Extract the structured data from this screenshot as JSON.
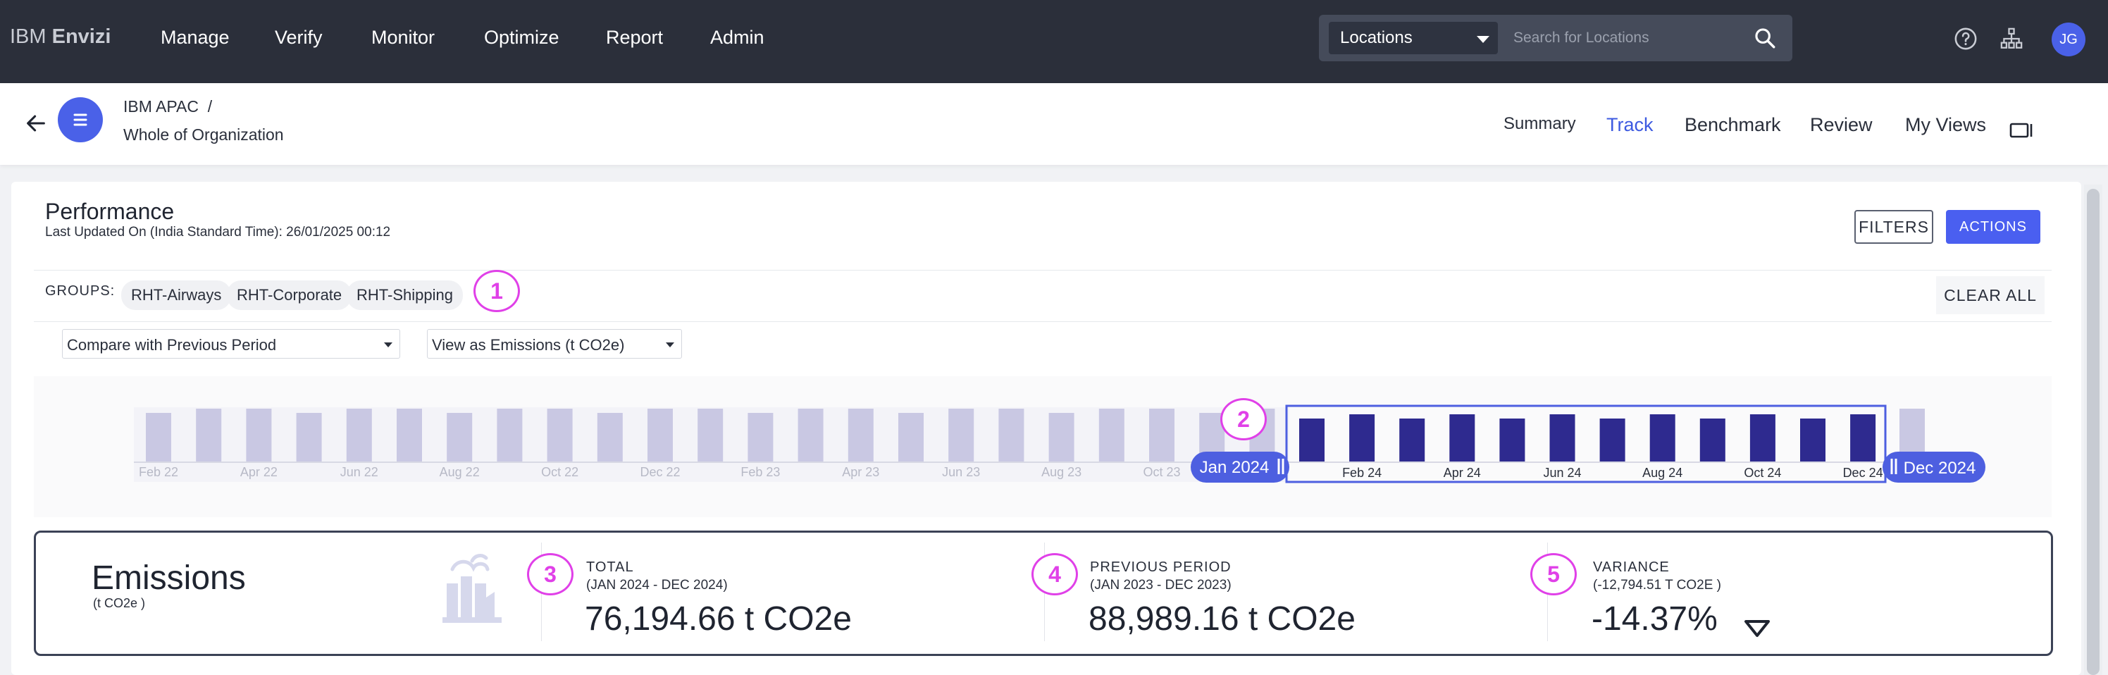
{
  "app": {
    "brand_prefix": "IBM",
    "brand_name": "Envizi"
  },
  "topnav": {
    "items": [
      "Manage",
      "Verify",
      "Monitor",
      "Optimize",
      "Report",
      "Admin"
    ]
  },
  "search": {
    "scope": "Locations",
    "placeholder": "Search for Locations"
  },
  "user": {
    "initials": "JG"
  },
  "breadcrumb": {
    "parent": "IBM APAC",
    "separator": "/",
    "current": "Whole of Organization"
  },
  "tabs": [
    {
      "label": "Summary",
      "active": false
    },
    {
      "label": "Track",
      "active": true
    },
    {
      "label": "Benchmark",
      "active": false
    },
    {
      "label": "Review",
      "active": false
    },
    {
      "label": "My Views",
      "active": false
    }
  ],
  "performance": {
    "title": "Performance",
    "last_updated": "Last Updated On (India Standard Time): 26/01/2025 00:12",
    "filters_label": "FILTERS",
    "actions_label": "ACTIONS"
  },
  "groups": {
    "label": "GROUPS:",
    "chips": [
      "RHT-Airways",
      "RHT-Corporate",
      "RHT-Shipping"
    ],
    "clear_label": "CLEAR ALL"
  },
  "selectors": {
    "compare": "Compare with Previous Period",
    "view_as": "View as Emissions (t CO2e)"
  },
  "timeline": {
    "months": [
      "Feb 22",
      "Mar 22",
      "Apr 22",
      "May 22",
      "Jun 22",
      "Jul 22",
      "Aug 22",
      "Sep 22",
      "Oct 22",
      "Nov 22",
      "Dec 22",
      "Jan 23",
      "Feb 23",
      "Mar 23",
      "Apr 23",
      "May 23",
      "Jun 23",
      "Jul 23",
      "Aug 23",
      "Sep 23",
      "Oct 23",
      "Nov 23",
      "Dec 23",
      "Jan 24",
      "Feb 24",
      "Mar 24",
      "Apr 24",
      "May 24",
      "Jun 24",
      "Jul 24",
      "Aug 24",
      "Sep 24",
      "Oct 24",
      "Nov 24",
      "Dec 24",
      "Jan 25"
    ],
    "tick_labels_before": [
      "Feb 22",
      "Apr 22",
      "Jun 22",
      "Aug 22",
      "Oct 22",
      "Dec 22",
      "Feb 23",
      "Apr 23",
      "Jun 23",
      "Aug 23",
      "Oct 23"
    ],
    "tick_labels_selected": [
      "Feb 24",
      "Apr 24",
      "Jun 24",
      "Aug 24",
      "Oct 24",
      "Dec 24"
    ],
    "selection_start": "Jan 2024",
    "selection_end": "Dec 2024",
    "colors": {
      "unselected": "#c9c8e3",
      "selected": "#2e2a8f",
      "handle": "#4d5fe0"
    }
  },
  "markers": [
    "1",
    "2",
    "3",
    "4",
    "5"
  ],
  "emissions": {
    "title": "Emissions",
    "unit": "(t CO2e )",
    "total": {
      "label": "TOTAL",
      "range": "(JAN 2024 - DEC 2024)",
      "value": "76,194.66 t CO2e"
    },
    "previous": {
      "label": "PREVIOUS PERIOD",
      "range": "(JAN 2023 - DEC 2023)",
      "value": "88,989.16 t CO2e"
    },
    "variance": {
      "label": "VARIANCE",
      "range": "(-12,794.51 T CO2E )",
      "value": "-14.37%",
      "direction": "down"
    }
  },
  "icons": [
    "help-icon",
    "org-tree-icon",
    "back-arrow-icon",
    "menu-icon",
    "camera-icon",
    "factory-icon",
    "search-icon",
    "down-triangle-icon"
  ]
}
